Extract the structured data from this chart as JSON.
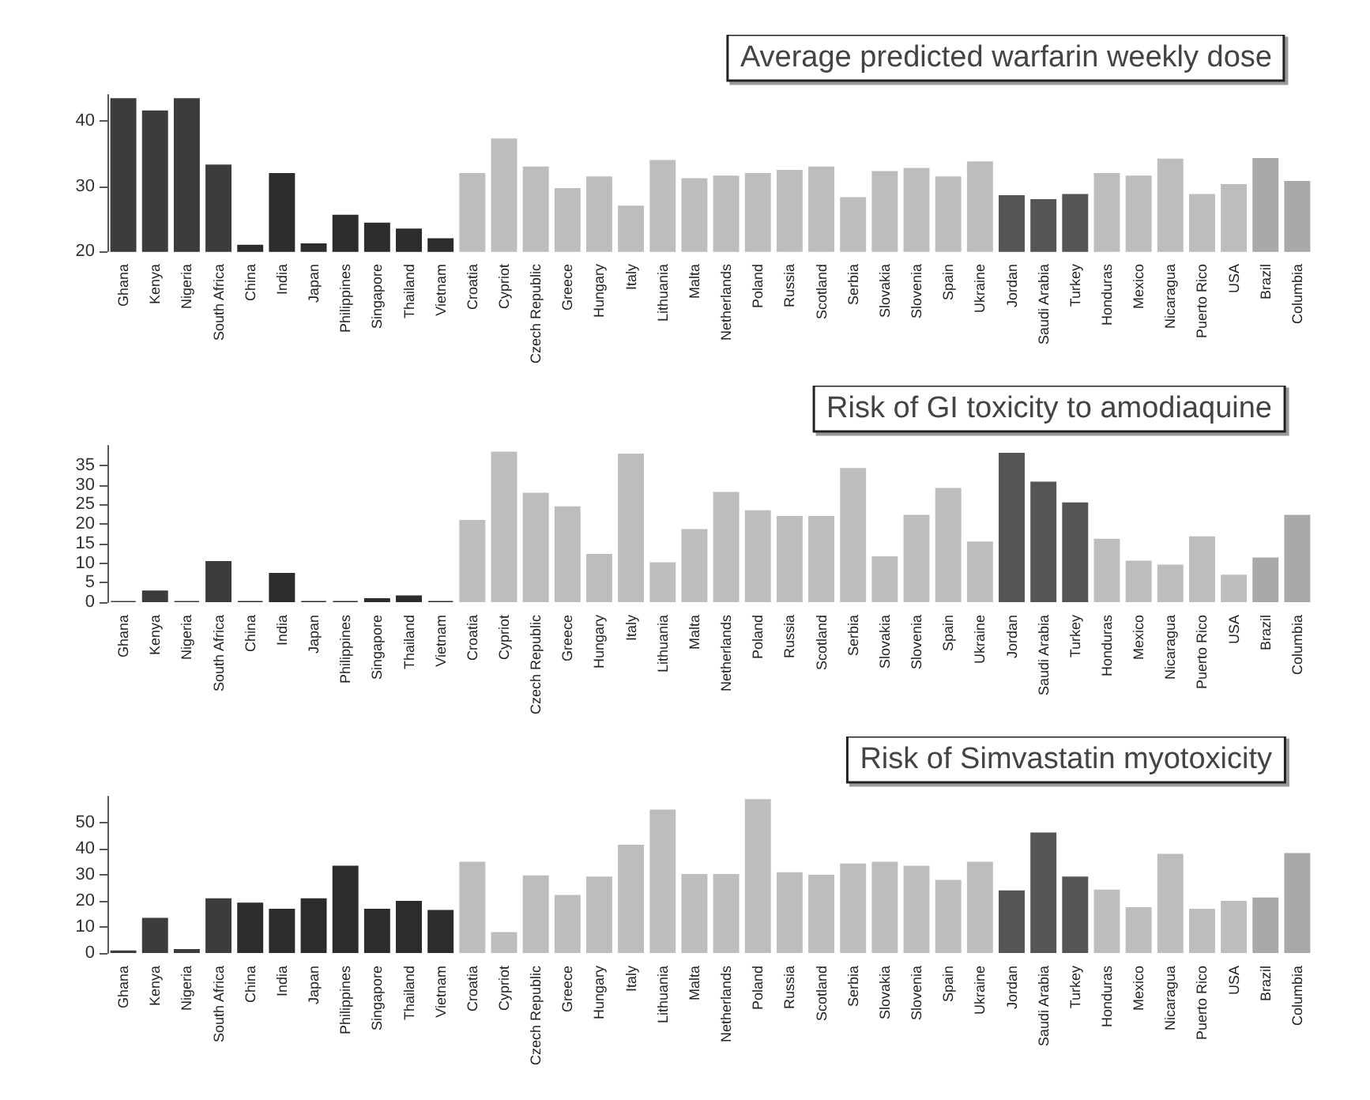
{
  "chart_data": [
    {
      "type": "bar",
      "title": "Average predicted warfarin weekly dose",
      "categories": [
        "Ghana",
        "Kenya",
        "Nigeria",
        "South Africa",
        "China",
        "India",
        "Japan",
        "Philippines",
        "Singapore",
        "Thailand",
        "Vietnam",
        "Croatia",
        "Cypriot",
        "Czech Republic",
        "Greece",
        "Hungary",
        "Italy",
        "Lithuania",
        "Malta",
        "Netherlands",
        "Poland",
        "Russia",
        "Scotland",
        "Serbia",
        "Slovakia",
        "Slovenia",
        "Spain",
        "Ukraine",
        "Jordan",
        "Saudi Arabia",
        "Turkey",
        "Honduras",
        "Mexico",
        "Nicaragua",
        "Puerto Rico",
        "USA",
        "Brazil",
        "Columbia"
      ],
      "values": [
        43.5,
        41.6,
        43.5,
        33.3,
        21,
        32,
        21.2,
        25.6,
        24.4,
        23.5,
        22,
        32,
        37.3,
        33,
        29.7,
        31.5,
        27,
        34,
        31.2,
        31.6,
        32,
        32.5,
        33,
        28.3,
        32.3,
        32.8,
        31.5,
        33.8,
        28.6,
        28,
        28.8,
        32,
        31.6,
        34.2,
        28.8,
        30.3,
        34.3,
        30.8
      ],
      "colors": [
        "#3c3c3c",
        "#3c3c3c",
        "#3c3c3c",
        "#3c3c3c",
        "#2c2c2c",
        "#2c2c2c",
        "#2c2c2c",
        "#2c2c2c",
        "#2c2c2c",
        "#2c2c2c",
        "#2c2c2c",
        "#bdbdbd",
        "#bdbdbd",
        "#bdbdbd",
        "#bdbdbd",
        "#bdbdbd",
        "#bdbdbd",
        "#bdbdbd",
        "#bdbdbd",
        "#bdbdbd",
        "#bdbdbd",
        "#bdbdbd",
        "#bdbdbd",
        "#bdbdbd",
        "#bdbdbd",
        "#bdbdbd",
        "#bdbdbd",
        "#bdbdbd",
        "#555555",
        "#555555",
        "#555555",
        "#bdbdbd",
        "#bdbdbd",
        "#bdbdbd",
        "#bdbdbd",
        "#bdbdbd",
        "#a9a9a9",
        "#a9a9a9"
      ],
      "ylim": [
        20,
        44
      ],
      "yticks": [
        20,
        30,
        40
      ],
      "grid": false
    },
    {
      "type": "bar",
      "title": "Risk of GI toxicity to amodiaquine",
      "categories": [
        "Ghana",
        "Kenya",
        "Nigeria",
        "South Africa",
        "China",
        "India",
        "Japan",
        "Philippines",
        "Singapore",
        "Thailand",
        "Vietnam",
        "Croatia",
        "Cypriot",
        "Czech Republic",
        "Greece",
        "Hungary",
        "Italy",
        "Lithuania",
        "Malta",
        "Netherlands",
        "Poland",
        "Russia",
        "Scotland",
        "Serbia",
        "Slovakia",
        "Slovenia",
        "Spain",
        "Ukraine",
        "Jordan",
        "Saudi Arabia",
        "Turkey",
        "Honduras",
        "Mexico",
        "Nicaragua",
        "Puerto Rico",
        "USA",
        "Brazil",
        "Columbia"
      ],
      "values": [
        0.3,
        3,
        0.3,
        10.5,
        0.3,
        7.5,
        0.3,
        0.3,
        1,
        1.7,
        0.3,
        21,
        38.5,
        28,
        24.5,
        12.3,
        38,
        10.2,
        18.7,
        28.2,
        23.5,
        22,
        22,
        34.3,
        11.7,
        22.3,
        29.2,
        15.5,
        38.2,
        30.8,
        25.5,
        16.2,
        10.6,
        9.6,
        16.8,
        7,
        11.4,
        22.3
      ],
      "colors": [
        "#3c3c3c",
        "#3c3c3c",
        "#3c3c3c",
        "#3c3c3c",
        "#2c2c2c",
        "#2c2c2c",
        "#2c2c2c",
        "#2c2c2c",
        "#2c2c2c",
        "#2c2c2c",
        "#2c2c2c",
        "#bdbdbd",
        "#bdbdbd",
        "#bdbdbd",
        "#bdbdbd",
        "#bdbdbd",
        "#bdbdbd",
        "#bdbdbd",
        "#bdbdbd",
        "#bdbdbd",
        "#bdbdbd",
        "#bdbdbd",
        "#bdbdbd",
        "#bdbdbd",
        "#bdbdbd",
        "#bdbdbd",
        "#bdbdbd",
        "#bdbdbd",
        "#555555",
        "#555555",
        "#555555",
        "#bdbdbd",
        "#bdbdbd",
        "#bdbdbd",
        "#bdbdbd",
        "#bdbdbd",
        "#a9a9a9",
        "#a9a9a9"
      ],
      "ylim": [
        0,
        40
      ],
      "yticks": [
        0,
        5,
        10,
        15,
        20,
        25,
        30,
        35
      ],
      "grid": false
    },
    {
      "type": "bar",
      "title": "Risk of Simvastatin myotoxicity",
      "categories": [
        "Ghana",
        "Kenya",
        "Nigeria",
        "South Africa",
        "China",
        "India",
        "Japan",
        "Philippines",
        "Singapore",
        "Thailand",
        "Vietnam",
        "Croatia",
        "Cypriot",
        "Czech Republic",
        "Greece",
        "Hungary",
        "Italy",
        "Lithuania",
        "Malta",
        "Netherlands",
        "Poland",
        "Russia",
        "Scotland",
        "Serbia",
        "Slovakia",
        "Slovenia",
        "Spain",
        "Ukraine",
        "Jordan",
        "Saudi Arabia",
        "Turkey",
        "Honduras",
        "Mexico",
        "Nicaragua",
        "Puerto Rico",
        "USA",
        "Brazil",
        "Columbia"
      ],
      "values": [
        1,
        13.5,
        1.5,
        21,
        19.3,
        17,
        21,
        33.5,
        17,
        20,
        16.5,
        35,
        8,
        29.8,
        22.3,
        29.3,
        41.5,
        55,
        30.3,
        30.3,
        59,
        31,
        30,
        34.3,
        35,
        33.5,
        28,
        35,
        24,
        46.2,
        29.3,
        24.3,
        17.6,
        38,
        17,
        20,
        21.3,
        38.3
      ],
      "colors": [
        "#3c3c3c",
        "#3c3c3c",
        "#3c3c3c",
        "#3c3c3c",
        "#2c2c2c",
        "#2c2c2c",
        "#2c2c2c",
        "#2c2c2c",
        "#2c2c2c",
        "#2c2c2c",
        "#2c2c2c",
        "#bdbdbd",
        "#bdbdbd",
        "#bdbdbd",
        "#bdbdbd",
        "#bdbdbd",
        "#bdbdbd",
        "#bdbdbd",
        "#bdbdbd",
        "#bdbdbd",
        "#bdbdbd",
        "#bdbdbd",
        "#bdbdbd",
        "#bdbdbd",
        "#bdbdbd",
        "#bdbdbd",
        "#bdbdbd",
        "#bdbdbd",
        "#555555",
        "#555555",
        "#555555",
        "#bdbdbd",
        "#bdbdbd",
        "#bdbdbd",
        "#bdbdbd",
        "#bdbdbd",
        "#a9a9a9",
        "#a9a9a9"
      ],
      "ylim": [
        0,
        60
      ],
      "yticks": [
        0,
        10,
        20,
        30,
        40,
        50
      ],
      "grid": false
    }
  ]
}
